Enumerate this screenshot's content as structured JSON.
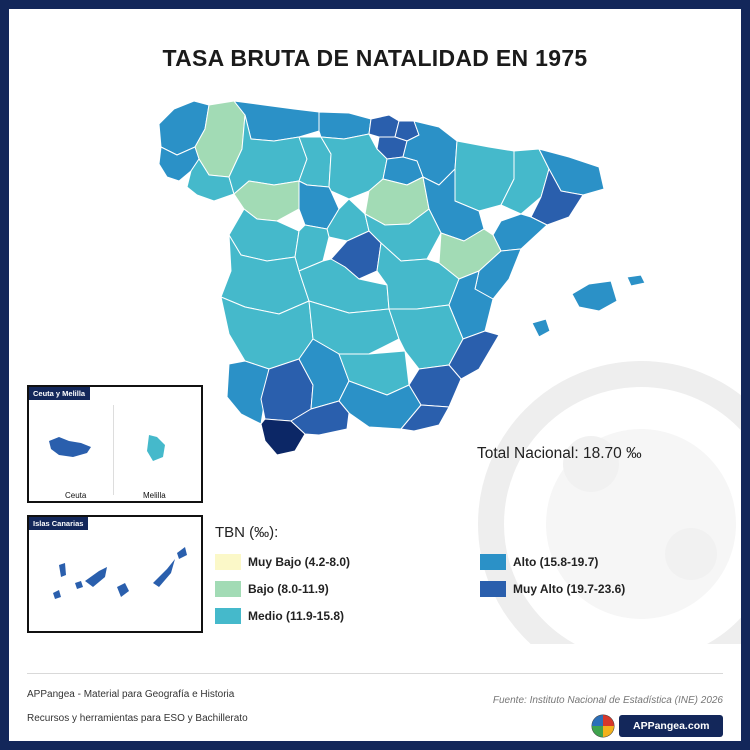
{
  "title": "TASA BRUTA DE NATALIDAD EN 1975",
  "total_label": "Total Nacional: 18.70 ‰",
  "legend": {
    "title": "TBN (‰):",
    "items": [
      {
        "label": "Muy Bajo (4.2-8.0)",
        "color": "#fbf8c8"
      },
      {
        "label": "Bajo (8.0-11.9)",
        "color": "#a2dbb5"
      },
      {
        "label": "Medio (11.9-15.8)",
        "color": "#45b9cb"
      },
      {
        "label": "Alto (15.8-19.7)",
        "color": "#2b91c7"
      },
      {
        "label": "Muy Alto (19.7-23.6)",
        "color": "#2a5fad"
      }
    ]
  },
  "insets": {
    "ceuta_melilla": {
      "title": "Ceuta y Melilla",
      "ceuta_label": "Ceuta",
      "melilla_label": "Melilla"
    },
    "canarias": {
      "title": "Islas Canarias"
    }
  },
  "footer": {
    "line1": "APPangea - Material para Geografía e Historia",
    "line2": "Recursos y herramientas para ESO y Bachillerato",
    "source": "Fuente: Instituto Nacional de Estadística (INE) 2026",
    "brand": "APPangea.com"
  },
  "colors": {
    "frame": "#13275a",
    "muy_bajo": "#fbf8c8",
    "bajo": "#a2dbb5",
    "medio": "#45b9cb",
    "alto": "#2b91c7",
    "muy_alto": "#2a5fad",
    "maximo": "#0c2766"
  },
  "map": {
    "provinces": [
      {
        "name": "Coruña",
        "class": "alto"
      },
      {
        "name": "Lugo",
        "class": "bajo"
      },
      {
        "name": "Pontevedra",
        "class": "alto"
      },
      {
        "name": "Ourense",
        "class": "medio"
      },
      {
        "name": "Asturias",
        "class": "alto"
      },
      {
        "name": "Cantabria",
        "class": "alto"
      },
      {
        "name": "Vizcaya",
        "class": "muy_alto"
      },
      {
        "name": "Guipúzcoa",
        "class": "muy_alto"
      },
      {
        "name": "Álava",
        "class": "muy_alto"
      },
      {
        "name": "Navarra",
        "class": "alto"
      },
      {
        "name": "León",
        "class": "medio"
      },
      {
        "name": "Palencia",
        "class": "medio"
      },
      {
        "name": "Burgos",
        "class": "medio"
      },
      {
        "name": "La Rioja",
        "class": "alto"
      },
      {
        "name": "Zamora",
        "class": "bajo"
      },
      {
        "name": "Valladolid",
        "class": "alto"
      },
      {
        "name": "Soria",
        "class": "bajo"
      },
      {
        "name": "Huesca",
        "class": "medio"
      },
      {
        "name": "Zaragoza",
        "class": "alto"
      },
      {
        "name": "Lleida",
        "class": "medio"
      },
      {
        "name": "Girona",
        "class": "alto"
      },
      {
        "name": "Barcelona",
        "class": "muy_alto"
      },
      {
        "name": "Tarragona",
        "class": "alto"
      },
      {
        "name": "Salamanca",
        "class": "medio"
      },
      {
        "name": "Segovia",
        "class": "medio"
      },
      {
        "name": "Ávila",
        "class": "medio"
      },
      {
        "name": "Madrid",
        "class": "muy_alto"
      },
      {
        "name": "Guadalajara",
        "class": "medio"
      },
      {
        "name": "Teruel",
        "class": "bajo"
      },
      {
        "name": "Castellón",
        "class": "alto"
      },
      {
        "name": "Cáceres",
        "class": "medio"
      },
      {
        "name": "Toledo",
        "class": "medio"
      },
      {
        "name": "Cuenca",
        "class": "medio"
      },
      {
        "name": "Valencia",
        "class": "alto"
      },
      {
        "name": "Badajoz",
        "class": "medio"
      },
      {
        "name": "Ciudad Real",
        "class": "medio"
      },
      {
        "name": "Albacete",
        "class": "medio"
      },
      {
        "name": "Alicante",
        "class": "muy_alto"
      },
      {
        "name": "Murcia",
        "class": "muy_alto"
      },
      {
        "name": "Huelva",
        "class": "alto"
      },
      {
        "name": "Sevilla",
        "class": "muy_alto"
      },
      {
        "name": "Córdoba",
        "class": "alto"
      },
      {
        "name": "Jaén",
        "class": "medio"
      },
      {
        "name": "Granada",
        "class": "alto"
      },
      {
        "name": "Almería",
        "class": "muy_alto"
      },
      {
        "name": "Cádiz",
        "class": "maximo"
      },
      {
        "name": "Málaga",
        "class": "muy_alto"
      },
      {
        "name": "Mallorca",
        "class": "alto"
      },
      {
        "name": "Menorca",
        "class": "alto"
      },
      {
        "name": "Ibiza",
        "class": "alto"
      }
    ]
  }
}
